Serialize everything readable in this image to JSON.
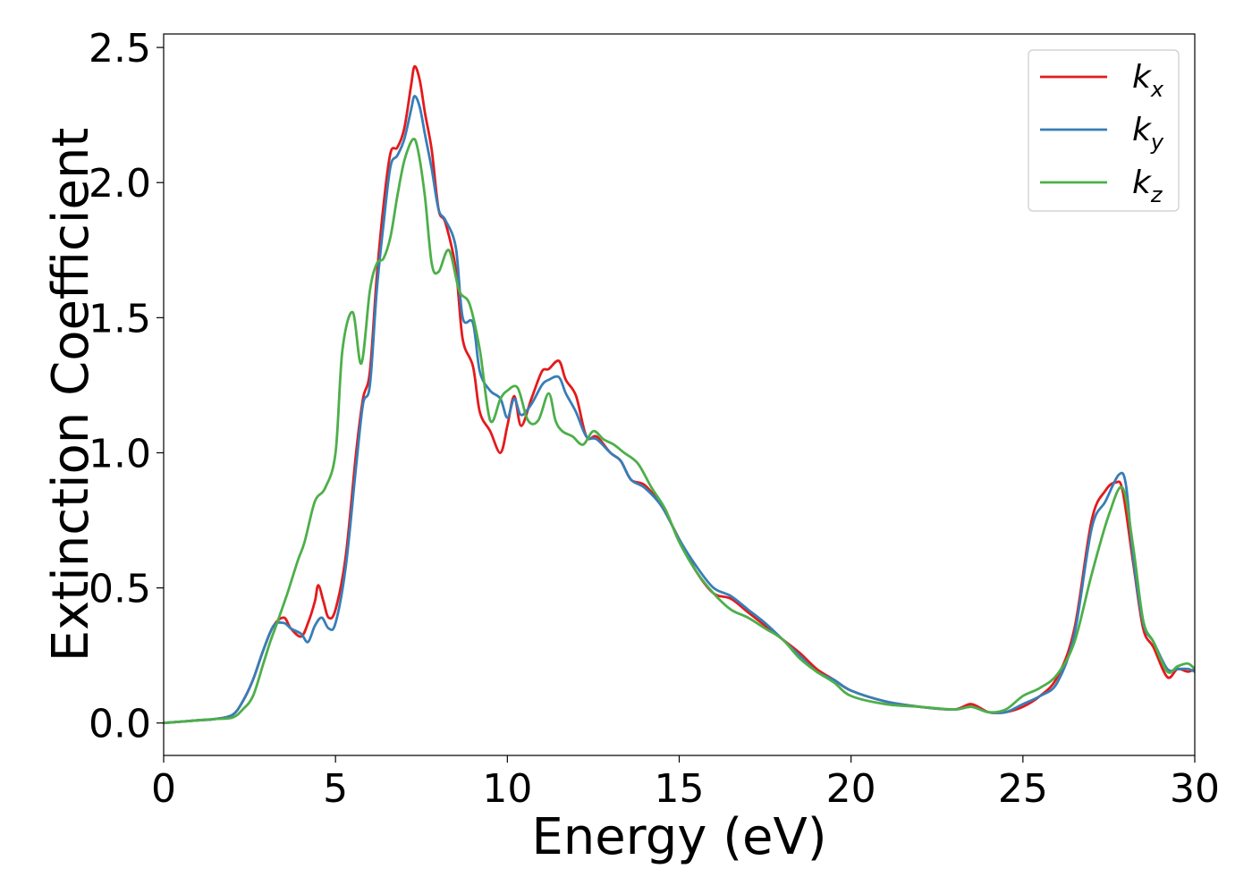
{
  "chart_data": {
    "type": "line",
    "title": "",
    "xlabel": "Energy (eV)",
    "ylabel": "Extinction Coefficient",
    "xlim": [
      0,
      30
    ],
    "ylim": [
      -0.12,
      2.55
    ],
    "xticks": [
      0,
      5,
      10,
      15,
      20,
      25,
      30
    ],
    "xtick_labels": [
      "0",
      "5",
      "10",
      "15",
      "20",
      "25",
      "30"
    ],
    "yticks": [
      0.0,
      0.5,
      1.0,
      1.5,
      2.0,
      2.5
    ],
    "ytick_labels": [
      "0.0",
      "0.5",
      "1.0",
      "1.5",
      "2.0",
      "2.5"
    ],
    "grid": false,
    "legend_position": "top-right",
    "series": [
      {
        "name": "k_x",
        "label_base": "k",
        "label_sub": "x",
        "color": "#e41a1c",
        "x": [
          0,
          1,
          1.5,
          2,
          2.3,
          2.6,
          2.9,
          3.2,
          3.5,
          3.7,
          4.0,
          4.2,
          4.4,
          4.5,
          4.65,
          4.8,
          5.0,
          5.3,
          5.6,
          5.8,
          6.0,
          6.2,
          6.4,
          6.6,
          6.8,
          7.0,
          7.2,
          7.3,
          7.45,
          7.6,
          7.8,
          8.0,
          8.2,
          8.5,
          8.7,
          9.0,
          9.2,
          9.5,
          9.8,
          10.0,
          10.2,
          10.4,
          10.7,
          11.0,
          11.2,
          11.5,
          11.7,
          12.0,
          12.3,
          12.6,
          13.0,
          13.3,
          13.6,
          14.0,
          14.5,
          15.0,
          15.5,
          16.0,
          16.5,
          17.0,
          17.5,
          18.0,
          18.5,
          19.0,
          19.5,
          20.0,
          21.0,
          22.0,
          23.0,
          23.5,
          24.0,
          24.5,
          25.0,
          25.5,
          26.0,
          26.5,
          27.0,
          27.4,
          27.7,
          27.9,
          28.2,
          28.5,
          28.8,
          29.2,
          29.5,
          29.8,
          30.0
        ],
        "values": [
          0.0,
          0.01,
          0.015,
          0.03,
          0.08,
          0.16,
          0.27,
          0.36,
          0.39,
          0.35,
          0.32,
          0.37,
          0.45,
          0.51,
          0.45,
          0.39,
          0.42,
          0.62,
          1.0,
          1.2,
          1.3,
          1.65,
          1.92,
          2.11,
          2.13,
          2.2,
          2.36,
          2.43,
          2.38,
          2.26,
          2.12,
          1.9,
          1.85,
          1.68,
          1.42,
          1.32,
          1.15,
          1.08,
          1.0,
          1.1,
          1.21,
          1.1,
          1.2,
          1.3,
          1.31,
          1.34,
          1.27,
          1.21,
          1.06,
          1.06,
          1.0,
          0.97,
          0.9,
          0.88,
          0.8,
          0.68,
          0.56,
          0.48,
          0.46,
          0.41,
          0.36,
          0.31,
          0.26,
          0.2,
          0.16,
          0.12,
          0.08,
          0.06,
          0.05,
          0.07,
          0.04,
          0.04,
          0.06,
          0.1,
          0.17,
          0.35,
          0.75,
          0.86,
          0.89,
          0.86,
          0.6,
          0.35,
          0.28,
          0.17,
          0.2,
          0.19,
          0.2
        ]
      },
      {
        "name": "k_y",
        "label_base": "k",
        "label_sub": "y",
        "color": "#377eb8",
        "x": [
          0,
          1,
          1.5,
          2,
          2.3,
          2.6,
          2.9,
          3.2,
          3.5,
          3.7,
          4.0,
          4.2,
          4.4,
          4.6,
          4.8,
          5.0,
          5.3,
          5.6,
          5.8,
          6.0,
          6.2,
          6.4,
          6.6,
          6.8,
          7.0,
          7.2,
          7.3,
          7.45,
          7.6,
          7.8,
          8.0,
          8.2,
          8.5,
          8.7,
          9.0,
          9.2,
          9.5,
          9.8,
          10.0,
          10.2,
          10.4,
          10.7,
          11.0,
          11.2,
          11.5,
          11.7,
          12.0,
          12.3,
          12.6,
          13.0,
          13.3,
          13.6,
          14.0,
          14.5,
          15.0,
          15.5,
          16.0,
          16.5,
          17.0,
          17.5,
          18.0,
          18.5,
          19.0,
          19.5,
          20.0,
          21.0,
          22.0,
          23.0,
          23.5,
          24.0,
          24.5,
          25.0,
          25.5,
          26.0,
          26.5,
          27.0,
          27.4,
          27.8,
          28.0,
          28.2,
          28.5,
          28.8,
          29.2,
          29.5,
          29.8,
          30.0
        ],
        "values": [
          0.0,
          0.01,
          0.015,
          0.03,
          0.08,
          0.16,
          0.27,
          0.36,
          0.37,
          0.35,
          0.33,
          0.3,
          0.36,
          0.39,
          0.35,
          0.37,
          0.58,
          0.95,
          1.18,
          1.25,
          1.6,
          1.85,
          2.06,
          2.1,
          2.16,
          2.27,
          2.32,
          2.28,
          2.18,
          2.05,
          1.9,
          1.86,
          1.76,
          1.5,
          1.48,
          1.3,
          1.23,
          1.2,
          1.13,
          1.2,
          1.14,
          1.18,
          1.25,
          1.27,
          1.28,
          1.22,
          1.15,
          1.06,
          1.05,
          1.0,
          0.97,
          0.9,
          0.87,
          0.8,
          0.68,
          0.58,
          0.5,
          0.47,
          0.42,
          0.37,
          0.31,
          0.25,
          0.19,
          0.16,
          0.12,
          0.08,
          0.06,
          0.05,
          0.06,
          0.04,
          0.04,
          0.07,
          0.1,
          0.15,
          0.33,
          0.72,
          0.82,
          0.92,
          0.88,
          0.62,
          0.37,
          0.3,
          0.2,
          0.2,
          0.2,
          0.19
        ]
      },
      {
        "name": "k_z",
        "label_base": "k",
        "label_sub": "z",
        "color": "#4daf4a",
        "x": [
          0,
          1,
          1.5,
          2,
          2.3,
          2.6,
          2.9,
          3.1,
          3.3,
          3.6,
          3.9,
          4.1,
          4.4,
          4.7,
          5.0,
          5.2,
          5.5,
          5.75,
          6.0,
          6.2,
          6.4,
          6.6,
          6.8,
          7.0,
          7.25,
          7.4,
          7.6,
          7.8,
          8.0,
          8.3,
          8.6,
          8.9,
          9.2,
          9.5,
          9.8,
          10.0,
          10.3,
          10.6,
          10.9,
          11.2,
          11.4,
          11.6,
          11.9,
          12.2,
          12.5,
          12.8,
          13.1,
          13.4,
          13.8,
          14.2,
          14.6,
          15.0,
          15.5,
          16.0,
          16.5,
          17.0,
          17.5,
          18.0,
          18.5,
          19.0,
          19.5,
          20.0,
          21.0,
          22.0,
          23.0,
          23.5,
          24.0,
          24.5,
          25.0,
          25.5,
          26.0,
          26.5,
          27.0,
          27.5,
          27.9,
          28.2,
          28.5,
          28.8,
          29.2,
          29.5,
          29.8,
          30.0
        ],
        "values": [
          0.0,
          0.01,
          0.015,
          0.02,
          0.05,
          0.1,
          0.22,
          0.3,
          0.37,
          0.48,
          0.6,
          0.67,
          0.82,
          0.87,
          1.0,
          1.38,
          1.52,
          1.33,
          1.6,
          1.7,
          1.72,
          1.8,
          1.95,
          2.08,
          2.16,
          2.12,
          1.95,
          1.7,
          1.67,
          1.75,
          1.6,
          1.55,
          1.38,
          1.12,
          1.2,
          1.23,
          1.24,
          1.12,
          1.12,
          1.22,
          1.12,
          1.08,
          1.06,
          1.03,
          1.08,
          1.05,
          1.03,
          1.0,
          0.96,
          0.87,
          0.79,
          0.67,
          0.56,
          0.48,
          0.42,
          0.39,
          0.35,
          0.31,
          0.24,
          0.19,
          0.15,
          0.1,
          0.07,
          0.06,
          0.05,
          0.06,
          0.04,
          0.05,
          0.1,
          0.13,
          0.18,
          0.3,
          0.55,
          0.77,
          0.87,
          0.66,
          0.38,
          0.3,
          0.19,
          0.21,
          0.22,
          0.2
        ]
      }
    ]
  }
}
